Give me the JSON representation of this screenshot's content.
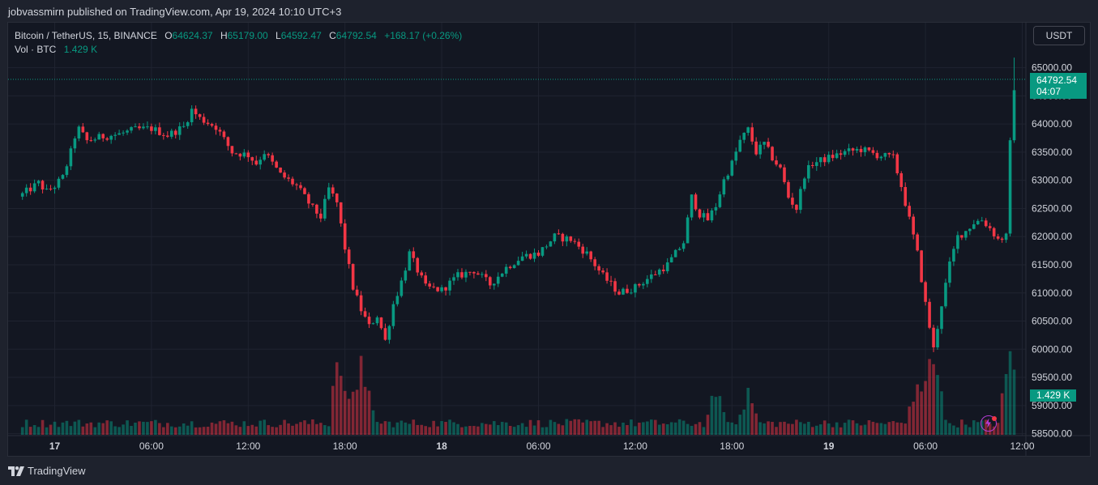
{
  "publish_line": "jobvassmirn published on TradingView.com, Apr 19, 2024 10:10 UTC+3",
  "footer": {
    "brand": "TradingView"
  },
  "colors": {
    "up": "#089981",
    "down": "#f23645",
    "background": "#131722",
    "grid": "#1f2330"
  },
  "legend": {
    "symbol": "Bitcoin / TetherUS, 15, BINANCE",
    "o_label": "O",
    "o_value": "64624.37",
    "h_label": "H",
    "h_value": "65179.00",
    "l_label": "L",
    "l_value": "64592.47",
    "c_label": "C",
    "c_value": "64792.54",
    "change": "+168.17 (+0.26%)",
    "vol_label": "Vol · BTC",
    "vol_value": "1.429 K"
  },
  "currency_button": "USDT",
  "last_price_tag": {
    "price": "64792.54",
    "countdown": "04:07"
  },
  "volume_tag": "1.429 K",
  "chart_data": {
    "type": "candlestick",
    "symbol": "BTCUSDT",
    "interval": "15",
    "exchange": "BINANCE",
    "ylim": [
      58400,
      65750
    ],
    "y_ticks": [
      "65000.00",
      "64500.00",
      "64000.00",
      "63500.00",
      "63000.00",
      "62500.00",
      "62000.00",
      "61500.00",
      "61000.00",
      "60500.00",
      "60000.00",
      "59500.00",
      "59000.00",
      "58500.00"
    ],
    "x_ticks": [
      "17",
      "06:00",
      "12:00",
      "18:00",
      "18",
      "06:00",
      "12:00",
      "18:00",
      "19",
      "06:00",
      "12:00"
    ],
    "x_ticks_bold": [
      true,
      false,
      false,
      false,
      true,
      false,
      false,
      false,
      true,
      false,
      false
    ],
    "x_tick_hours": [
      0,
      6,
      12,
      18,
      24,
      30,
      36,
      42,
      48,
      54,
      60
    ],
    "start_hour": -2.0,
    "bar_hours": 0.25,
    "last_price": 64792.54,
    "close_anchors": [
      [
        -2.0,
        62750
      ],
      [
        -1.5,
        62850
      ],
      [
        -1.0,
        62950
      ],
      [
        -0.5,
        62800
      ],
      [
        0.0,
        62900
      ],
      [
        0.5,
        63050
      ],
      [
        1.0,
        63500
      ],
      [
        1.4,
        63950
      ],
      [
        2.0,
        63700
      ],
      [
        3.0,
        63780
      ],
      [
        4.0,
        63820
      ],
      [
        5.0,
        63900
      ],
      [
        6.0,
        63920
      ],
      [
        7.0,
        63800
      ],
      [
        8.0,
        63950
      ],
      [
        8.5,
        64250
      ],
      [
        9.0,
        64100
      ],
      [
        10.0,
        63950
      ],
      [
        11.0,
        63500
      ],
      [
        12.0,
        63450
      ],
      [
        12.5,
        63300
      ],
      [
        13.0,
        63500
      ],
      [
        14.0,
        63100
      ],
      [
        15.0,
        62900
      ],
      [
        16.0,
        62500
      ],
      [
        16.5,
        62350
      ],
      [
        17.0,
        62850
      ],
      [
        17.5,
        62600
      ],
      [
        18.0,
        61800
      ],
      [
        18.5,
        61100
      ],
      [
        19.0,
        60700
      ],
      [
        19.5,
        60400
      ],
      [
        20.0,
        60600
      ],
      [
        20.5,
        60150
      ],
      [
        21.0,
        60800
      ],
      [
        21.5,
        61200
      ],
      [
        22.0,
        61700
      ],
      [
        22.5,
        61400
      ],
      [
        23.0,
        61100
      ],
      [
        24.0,
        61050
      ],
      [
        25.0,
        61300
      ],
      [
        26.0,
        61400
      ],
      [
        27.0,
        61150
      ],
      [
        28.0,
        61450
      ],
      [
        29.0,
        61650
      ],
      [
        30.0,
        61700
      ],
      [
        31.0,
        62000
      ],
      [
        32.0,
        61950
      ],
      [
        33.0,
        61700
      ],
      [
        34.0,
        61300
      ],
      [
        35.0,
        61000
      ],
      [
        36.0,
        61100
      ],
      [
        37.0,
        61300
      ],
      [
        38.0,
        61500
      ],
      [
        38.5,
        61700
      ],
      [
        39.0,
        61900
      ],
      [
        39.5,
        62700
      ],
      [
        40.0,
        62400
      ],
      [
        40.5,
        62300
      ],
      [
        41.0,
        62550
      ],
      [
        41.5,
        63000
      ],
      [
        42.0,
        63300
      ],
      [
        42.5,
        63700
      ],
      [
        43.0,
        63900
      ],
      [
        43.5,
        63500
      ],
      [
        44.0,
        63650
      ],
      [
        44.5,
        63400
      ],
      [
        45.0,
        63200
      ],
      [
        45.5,
        62700
      ],
      [
        46.0,
        62500
      ],
      [
        46.5,
        63100
      ],
      [
        47.0,
        63300
      ],
      [
        48.0,
        63400
      ],
      [
        49.0,
        63500
      ],
      [
        50.0,
        63550
      ],
      [
        51.0,
        63450
      ],
      [
        52.0,
        63400
      ],
      [
        52.5,
        62900
      ],
      [
        53.0,
        62300
      ],
      [
        53.5,
        61700
      ],
      [
        54.0,
        60800
      ],
      [
        54.5,
        60000
      ],
      [
        55.0,
        60800
      ],
      [
        55.5,
        61500
      ],
      [
        56.0,
        62000
      ],
      [
        56.5,
        62100
      ],
      [
        57.0,
        62250
      ],
      [
        57.5,
        62300
      ],
      [
        58.0,
        62150
      ],
      [
        58.5,
        61950
      ],
      [
        59.0,
        62000
      ],
      [
        59.25,
        63650
      ],
      [
        59.5,
        64600
      ],
      [
        59.6,
        64792.54
      ]
    ],
    "volume_spikes": [
      [
        17.6,
        0.85
      ],
      [
        18.2,
        0.4
      ],
      [
        18.6,
        0.6
      ],
      [
        19.0,
        0.8
      ],
      [
        19.3,
        0.55
      ],
      [
        41.0,
        0.5
      ],
      [
        43.0,
        0.45
      ],
      [
        53.5,
        0.55
      ],
      [
        54.2,
        0.8
      ],
      [
        54.6,
        0.85
      ],
      [
        59.3,
        1.0
      ],
      [
        59.55,
        0.45
      ]
    ]
  }
}
